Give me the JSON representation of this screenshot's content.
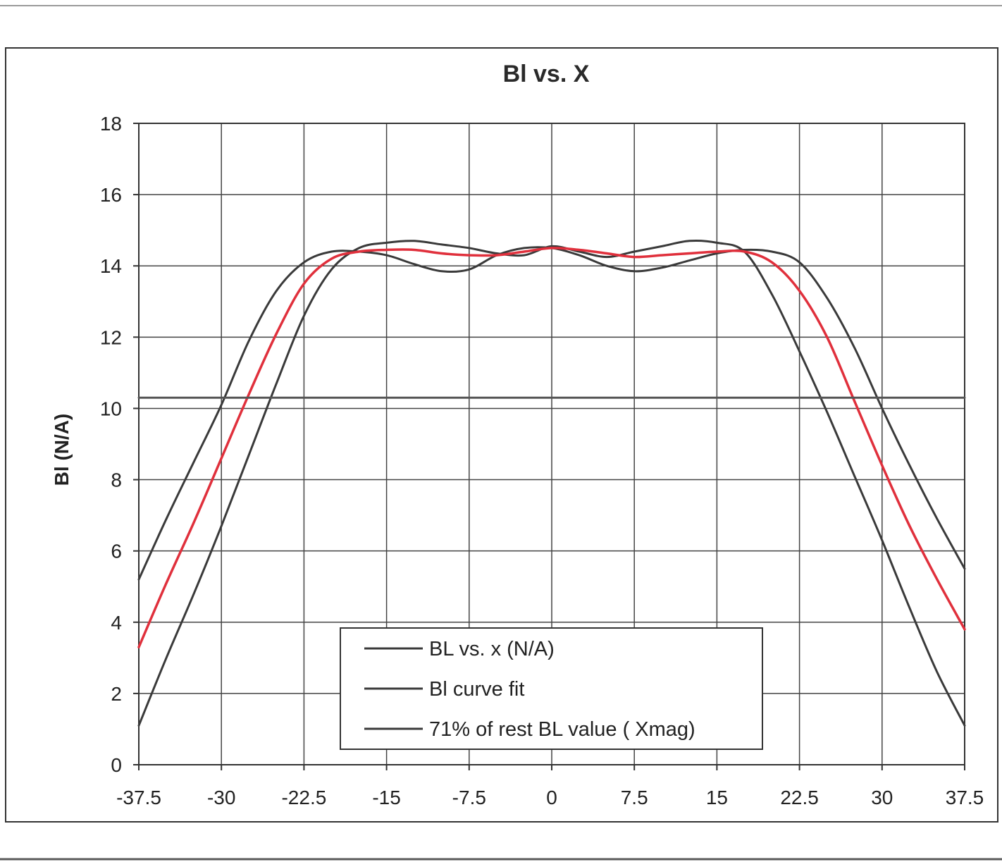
{
  "chart_data": {
    "type": "line",
    "title": "Bl vs. X",
    "xlabel": "",
    "ylabel": "Bl (N/A)",
    "xlim": [
      -37.5,
      37.5
    ],
    "ylim": [
      0,
      18
    ],
    "x_ticks": [
      "-37.5",
      "-30",
      "-22.5",
      "-15",
      "-7.5",
      "0",
      "7.5",
      "15",
      "22.5",
      "30",
      "37.5"
    ],
    "y_ticks": [
      "0",
      "2",
      "4",
      "6",
      "8",
      "10",
      "12",
      "14",
      "16",
      "18"
    ],
    "grid": true,
    "legend_position": "bottom-center",
    "series": [
      {
        "name": "BL vs. x (N/A)",
        "color": "#3a3a3a",
        "x": [
          -37.5,
          -35,
          -32.5,
          -30,
          -27.5,
          -25,
          -22.5,
          -20,
          -17.5,
          -15,
          -12.5,
          -10,
          -7.5,
          -5,
          -2.5,
          0,
          2.5,
          5,
          7.5,
          10,
          12.5,
          15,
          17.5,
          20,
          22.5,
          25,
          27.5,
          30,
          32.5,
          35,
          37.5
        ],
        "y": [
          1.1,
          3.0,
          4.8,
          6.7,
          8.7,
          10.7,
          12.6,
          13.9,
          14.5,
          14.65,
          14.7,
          14.6,
          14.5,
          14.35,
          14.3,
          14.55,
          14.4,
          14.25,
          14.4,
          14.55,
          14.7,
          14.65,
          14.4,
          13.2,
          11.6,
          9.9,
          8.1,
          6.3,
          4.4,
          2.6,
          1.1
        ]
      },
      {
        "name": "Bl curve fit",
        "color": "#3a3a3a",
        "x": [
          -37.5,
          -35,
          -32.5,
          -30,
          -27.5,
          -25,
          -22.5,
          -20,
          -17.5,
          -15,
          -12.5,
          -10,
          -7.5,
          -5,
          -2.5,
          0,
          2.5,
          5,
          7.5,
          10,
          12.5,
          15,
          17.5,
          20,
          22.5,
          25,
          27.5,
          30,
          32.5,
          35,
          37.5
        ],
        "y": [
          5.2,
          6.9,
          8.5,
          10.1,
          11.9,
          13.3,
          14.1,
          14.4,
          14.4,
          14.3,
          14.05,
          13.85,
          13.9,
          14.3,
          14.5,
          14.5,
          14.3,
          14.0,
          13.85,
          13.95,
          14.15,
          14.35,
          14.45,
          14.4,
          14.1,
          13.1,
          11.7,
          10.0,
          8.4,
          6.9,
          5.5
        ]
      },
      {
        "name": "",
        "color": "#e0303c",
        "x": [
          -37.5,
          -35,
          -32.5,
          -30,
          -27.5,
          -25,
          -22.5,
          -20,
          -17.5,
          -15,
          -12.5,
          -10,
          -7.5,
          -5,
          -2.5,
          0,
          2.5,
          5,
          7.5,
          10,
          12.5,
          15,
          17.5,
          20,
          22.5,
          25,
          27.5,
          30,
          32.5,
          35,
          37.5
        ],
        "y": [
          3.3,
          5.1,
          6.8,
          8.6,
          10.4,
          12.1,
          13.5,
          14.2,
          14.4,
          14.45,
          14.45,
          14.35,
          14.3,
          14.3,
          14.4,
          14.5,
          14.45,
          14.35,
          14.25,
          14.3,
          14.35,
          14.4,
          14.4,
          14.1,
          13.3,
          12.0,
          10.2,
          8.4,
          6.7,
          5.2,
          3.8
        ]
      },
      {
        "name": "71% of rest BL value ( Xmag)",
        "color": "#555555",
        "x": [
          -37.5,
          37.5
        ],
        "y": [
          10.3,
          10.3
        ]
      }
    ]
  }
}
